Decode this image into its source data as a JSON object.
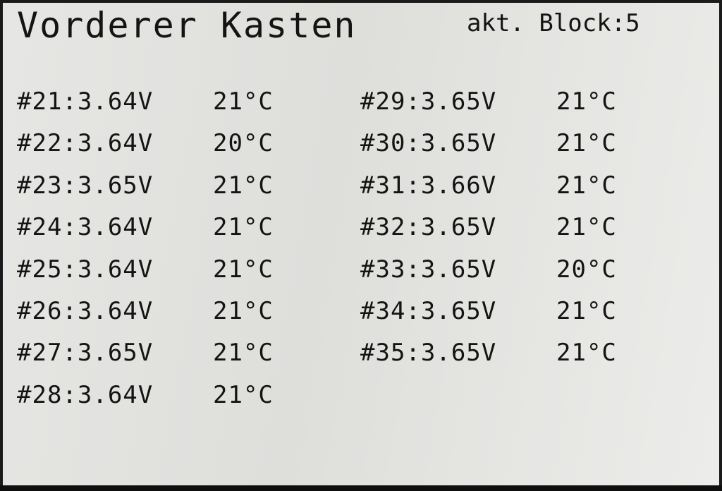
{
  "header": {
    "title": "Vorderer Kasten",
    "block_label": "akt. Block:5"
  },
  "cells_left": [
    {
      "id_voltage": "#21:3.64V",
      "temp": "21°C"
    },
    {
      "id_voltage": "#22:3.64V",
      "temp": "20°C"
    },
    {
      "id_voltage": "#23:3.65V",
      "temp": "21°C"
    },
    {
      "id_voltage": "#24:3.64V",
      "temp": "21°C"
    },
    {
      "id_voltage": "#25:3.64V",
      "temp": "21°C"
    },
    {
      "id_voltage": "#26:3.64V",
      "temp": "21°C"
    },
    {
      "id_voltage": "#27:3.65V",
      "temp": "21°C"
    },
    {
      "id_voltage": "#28:3.64V",
      "temp": "21°C"
    }
  ],
  "cells_right": [
    {
      "id_voltage": "#29:3.65V",
      "temp": "21°C"
    },
    {
      "id_voltage": "#30:3.65V",
      "temp": "21°C"
    },
    {
      "id_voltage": "#31:3.66V",
      "temp": "21°C"
    },
    {
      "id_voltage": "#32:3.65V",
      "temp": "21°C"
    },
    {
      "id_voltage": "#33:3.65V",
      "temp": "20°C"
    },
    {
      "id_voltage": "#34:3.65V",
      "temp": "21°C"
    },
    {
      "id_voltage": "#35:3.65V",
      "temp": "21°C"
    }
  ],
  "colors": {
    "background": "#e3e3e1",
    "text": "#141414",
    "bezel": "#1a1a1a"
  }
}
